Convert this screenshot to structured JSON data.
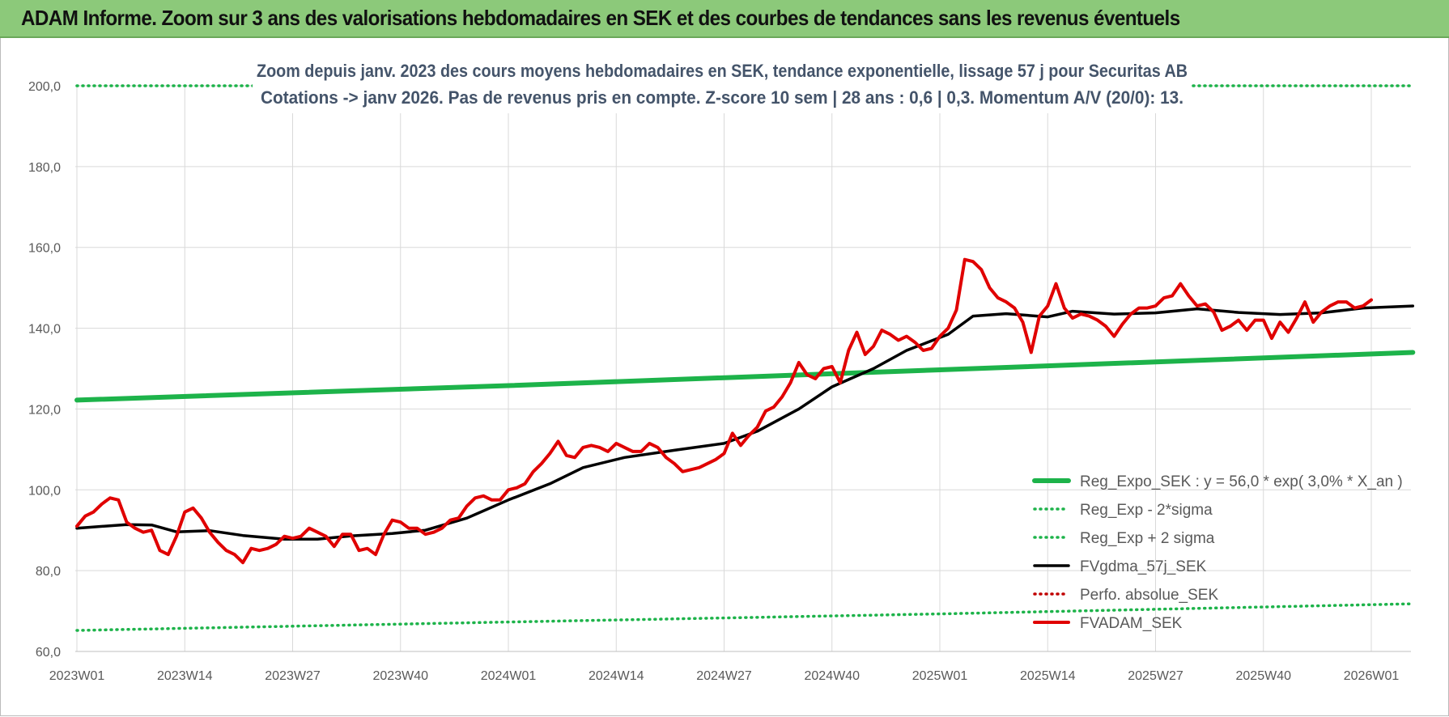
{
  "banner": {
    "title": "ADAM Informe. Zoom sur 3 ans des valorisations hebdomadaires en SEK et des courbes de tendances sans les revenus éventuels"
  },
  "chart_data": {
    "type": "line",
    "subtitle_line1": "Zoom depuis janv. 2023 des cours moyens hebdomadaires en SEK, tendance exponentielle, lissage 57 j pour Securitas AB",
    "subtitle_line2": "Cotations -> janv 2026. Pas de revenus pris en compte. Z-score 10 sem | 28 ans : 0,6 | 0,3. Momentum A/V (20/0): 13.",
    "ylim": [
      60,
      200
    ],
    "y_ticks": [
      "60,0",
      "80,0",
      "100,0",
      "120,0",
      "140,0",
      "160,0",
      "180,0",
      "200,0"
    ],
    "x_tick_labels": [
      "2023W01",
      "2023W14",
      "2023W27",
      "2023W40",
      "2024W01",
      "2024W14",
      "2024W27",
      "2024W40",
      "2025W01",
      "2025W14",
      "2025W27",
      "2025W40",
      "2026W01"
    ],
    "x_tick_week_index": [
      0,
      13,
      26,
      39,
      52,
      65,
      78,
      91,
      104,
      117,
      130,
      143,
      156
    ],
    "x_range_weeks": [
      0,
      161
    ],
    "grid": true,
    "legend_position": "bottom-right",
    "series": [
      {
        "name": "Reg_Expo_SEK : y = 56,0 * exp( 3,0% * X_an )",
        "color": "#1db34a",
        "style": "solid-thick",
        "anchors": [
          [
            0,
            122.2
          ],
          [
            52,
            125.8
          ],
          [
            104,
            129.7
          ],
          [
            161,
            134.0
          ]
        ]
      },
      {
        "name": "Reg_Exp - 2*sigma",
        "color": "#1db34a",
        "style": "dotted",
        "anchors": [
          [
            0,
            65.2
          ],
          [
            52,
            67.3
          ],
          [
            104,
            69.3
          ],
          [
            161,
            71.8
          ]
        ]
      },
      {
        "name": "Reg_Exp + 2 sigma",
        "color": "#1db34a",
        "style": "dotted",
        "anchors": [
          [
            0,
            200.0
          ],
          [
            161,
            200.0
          ]
        ]
      },
      {
        "name": "FVgdma_57j_SEK",
        "color": "#000000",
        "style": "solid",
        "anchors": [
          [
            0,
            90.5
          ],
          [
            6,
            91.4
          ],
          [
            9,
            91.3
          ],
          [
            12,
            89.6
          ],
          [
            16,
            89.9
          ],
          [
            20,
            88.7
          ],
          [
            25,
            87.8
          ],
          [
            29,
            87.8
          ],
          [
            33,
            88.6
          ],
          [
            38,
            89.2
          ],
          [
            42,
            90.0
          ],
          [
            47,
            93.0
          ],
          [
            52,
            97.5
          ],
          [
            57,
            101.5
          ],
          [
            61,
            105.5
          ],
          [
            66,
            108.0
          ],
          [
            72,
            109.8
          ],
          [
            78,
            111.5
          ],
          [
            82,
            114.5
          ],
          [
            87,
            120.0
          ],
          [
            91,
            125.5
          ],
          [
            96,
            130.0
          ],
          [
            100,
            134.5
          ],
          [
            105,
            138.5
          ],
          [
            108,
            143.0
          ],
          [
            112,
            143.6
          ],
          [
            117,
            142.8
          ],
          [
            120,
            144.2
          ],
          [
            125,
            143.5
          ],
          [
            130,
            143.8
          ],
          [
            135,
            144.8
          ],
          [
            140,
            143.9
          ],
          [
            145,
            143.4
          ],
          [
            150,
            143.8
          ],
          [
            155,
            145.0
          ],
          [
            161,
            145.5
          ]
        ]
      },
      {
        "name": "Perfo. absolue_SEK",
        "color": "#c00000",
        "style": "dotted",
        "anchors": []
      },
      {
        "name": "FVADAM_SEK",
        "color": "#e00000",
        "style": "solid-thick",
        "anchors": [
          [
            0,
            91.0
          ],
          [
            1,
            93.5
          ],
          [
            2,
            94.5
          ],
          [
            3,
            96.5
          ],
          [
            4,
            98.0
          ],
          [
            5,
            97.5
          ],
          [
            6,
            92.0
          ],
          [
            7,
            90.5
          ],
          [
            8,
            89.5
          ],
          [
            9,
            90.0
          ],
          [
            10,
            85.0
          ],
          [
            11,
            84.0
          ],
          [
            12,
            88.5
          ],
          [
            13,
            94.5
          ],
          [
            14,
            95.5
          ],
          [
            15,
            93.0
          ],
          [
            16,
            89.5
          ],
          [
            17,
            87.0
          ],
          [
            18,
            85.0
          ],
          [
            19,
            84.0
          ],
          [
            20,
            82.0
          ],
          [
            21,
            85.5
          ],
          [
            22,
            85.0
          ],
          [
            23,
            85.5
          ],
          [
            24,
            86.5
          ],
          [
            25,
            88.5
          ],
          [
            26,
            88.0
          ],
          [
            27,
            88.5
          ],
          [
            28,
            90.5
          ],
          [
            29,
            89.5
          ],
          [
            30,
            88.5
          ],
          [
            31,
            86.0
          ],
          [
            32,
            89.0
          ],
          [
            33,
            89.0
          ],
          [
            34,
            85.0
          ],
          [
            35,
            85.5
          ],
          [
            36,
            84.0
          ],
          [
            37,
            89.0
          ],
          [
            38,
            92.5
          ],
          [
            39,
            92.0
          ],
          [
            40,
            90.5
          ],
          [
            41,
            90.5
          ],
          [
            42,
            89.0
          ],
          [
            43,
            89.5
          ],
          [
            44,
            90.5
          ],
          [
            45,
            92.5
          ],
          [
            46,
            93.0
          ],
          [
            47,
            96.0
          ],
          [
            48,
            98.0
          ],
          [
            49,
            98.5
          ],
          [
            50,
            97.5
          ],
          [
            51,
            97.5
          ],
          [
            52,
            100.0
          ],
          [
            53,
            100.5
          ],
          [
            54,
            101.5
          ],
          [
            55,
            104.5
          ],
          [
            56,
            106.5
          ],
          [
            57,
            109.0
          ],
          [
            58,
            112.0
          ],
          [
            59,
            108.5
          ],
          [
            60,
            108.0
          ],
          [
            61,
            110.5
          ],
          [
            62,
            111.0
          ],
          [
            63,
            110.5
          ],
          [
            64,
            109.5
          ],
          [
            65,
            111.5
          ],
          [
            66,
            110.5
          ],
          [
            67,
            109.5
          ],
          [
            68,
            109.5
          ],
          [
            69,
            111.5
          ],
          [
            70,
            110.5
          ],
          [
            71,
            108.0
          ],
          [
            72,
            106.5
          ],
          [
            73,
            104.5
          ],
          [
            74,
            105.0
          ],
          [
            75,
            105.5
          ],
          [
            76,
            106.5
          ],
          [
            77,
            107.5
          ],
          [
            78,
            109.0
          ],
          [
            79,
            114.0
          ],
          [
            80,
            111.0
          ],
          [
            81,
            113.5
          ],
          [
            82,
            115.5
          ],
          [
            83,
            119.5
          ],
          [
            84,
            120.5
          ],
          [
            85,
            123.0
          ],
          [
            86,
            126.5
          ],
          [
            87,
            131.5
          ],
          [
            88,
            128.5
          ],
          [
            89,
            127.5
          ],
          [
            90,
            130.0
          ],
          [
            91,
            130.5
          ],
          [
            92,
            126.5
          ],
          [
            93,
            134.5
          ],
          [
            94,
            139.0
          ],
          [
            95,
            133.5
          ],
          [
            96,
            135.5
          ],
          [
            97,
            139.5
          ],
          [
            98,
            138.5
          ],
          [
            99,
            137.0
          ],
          [
            100,
            138.0
          ],
          [
            101,
            136.5
          ],
          [
            102,
            134.5
          ],
          [
            103,
            135.0
          ],
          [
            104,
            138.0
          ],
          [
            105,
            140.0
          ],
          [
            106,
            144.5
          ],
          [
            107,
            157.0
          ],
          [
            108,
            156.5
          ],
          [
            109,
            154.5
          ],
          [
            110,
            150.0
          ],
          [
            111,
            147.5
          ],
          [
            112,
            146.5
          ],
          [
            113,
            145.0
          ],
          [
            114,
            141.5
          ],
          [
            115,
            134.0
          ],
          [
            116,
            143.0
          ],
          [
            117,
            145.5
          ],
          [
            118,
            151.0
          ],
          [
            119,
            145.0
          ],
          [
            120,
            142.5
          ],
          [
            121,
            143.5
          ],
          [
            122,
            143.0
          ],
          [
            123,
            142.0
          ],
          [
            124,
            140.5
          ],
          [
            125,
            138.0
          ],
          [
            126,
            141.0
          ],
          [
            127,
            143.5
          ],
          [
            128,
            145.0
          ],
          [
            129,
            145.0
          ],
          [
            130,
            145.5
          ],
          [
            131,
            147.5
          ],
          [
            132,
            148.0
          ],
          [
            133,
            151.0
          ],
          [
            134,
            148.0
          ],
          [
            135,
            145.5
          ],
          [
            136,
            146.0
          ],
          [
            137,
            144.0
          ],
          [
            138,
            139.5
          ],
          [
            139,
            140.5
          ],
          [
            140,
            142.0
          ],
          [
            141,
            139.5
          ],
          [
            142,
            142.0
          ],
          [
            143,
            142.0
          ],
          [
            144,
            137.5
          ],
          [
            145,
            141.5
          ],
          [
            146,
            139.0
          ],
          [
            147,
            142.5
          ],
          [
            148,
            146.5
          ],
          [
            149,
            141.5
          ],
          [
            150,
            144.0
          ],
          [
            151,
            145.5
          ],
          [
            152,
            146.5
          ],
          [
            153,
            146.5
          ],
          [
            154,
            145.0
          ],
          [
            155,
            145.5
          ],
          [
            156,
            147.0
          ]
        ]
      }
    ]
  }
}
